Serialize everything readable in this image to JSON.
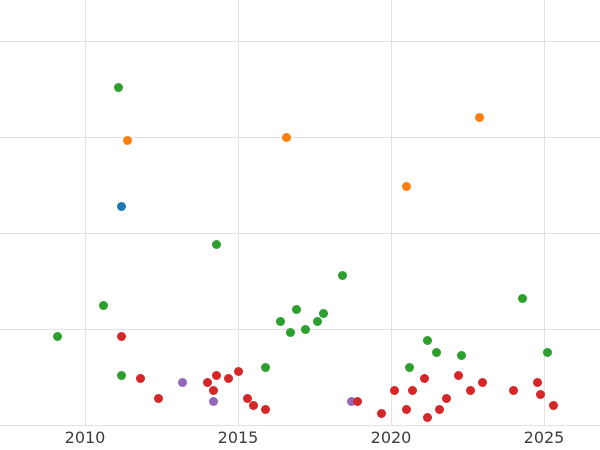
{
  "style": {
    "background": "#ffffff",
    "grid_color": "#e3e3e3",
    "tick_label_color": "#3d3d3d"
  },
  "chart_data": {
    "type": "scatter",
    "title": "",
    "xlabel": "",
    "ylabel": "",
    "grid": true,
    "legend": "none",
    "x_axis": {
      "tick_values": [
        2010,
        2015,
        2020,
        2025
      ],
      "tick_labels": [
        "2010",
        "2015",
        "2020",
        "2025"
      ],
      "range": [
        2007.2,
        2026.8
      ]
    },
    "y_axis": {
      "tick_labels": [],
      "gridline_values": [
        0,
        25,
        50,
        75,
        100
      ],
      "range": [
        0,
        100
      ]
    },
    "series": [
      {
        "name": "green",
        "color": "#2ca02c",
        "points": [
          [
            2009.1,
            23
          ],
          [
            2010.6,
            31
          ],
          [
            2011.1,
            88
          ],
          [
            2011.2,
            13
          ],
          [
            2014.3,
            47
          ],
          [
            2015.9,
            15
          ],
          [
            2016.4,
            27
          ],
          [
            2016.7,
            24
          ],
          [
            2016.9,
            30
          ],
          [
            2017.2,
            25
          ],
          [
            2017.6,
            27
          ],
          [
            2017.8,
            29
          ],
          [
            2018.4,
            39
          ],
          [
            2020.6,
            15
          ],
          [
            2021.2,
            22
          ],
          [
            2021.5,
            19
          ],
          [
            2022.3,
            18
          ],
          [
            2024.3,
            33
          ],
          [
            2025.1,
            19
          ]
        ]
      },
      {
        "name": "orange",
        "color": "#ff7f0e",
        "points": [
          [
            2011.4,
            74
          ],
          [
            2016.6,
            75
          ],
          [
            2020.5,
            62
          ],
          [
            2022.9,
            80
          ]
        ]
      },
      {
        "name": "blue",
        "color": "#1f77b4",
        "points": [
          [
            2011.2,
            57
          ]
        ]
      },
      {
        "name": "purple",
        "color": "#9467bd",
        "points": [
          [
            2013.2,
            11
          ],
          [
            2014.2,
            6
          ],
          [
            2018.7,
            6
          ]
        ]
      },
      {
        "name": "red",
        "color": "#d62728",
        "points": [
          [
            2011.2,
            23
          ],
          [
            2011.8,
            12
          ],
          [
            2012.4,
            7
          ],
          [
            2014.0,
            11
          ],
          [
            2014.2,
            9
          ],
          [
            2014.3,
            13
          ],
          [
            2014.7,
            12
          ],
          [
            2015.0,
            14
          ],
          [
            2015.3,
            7
          ],
          [
            2015.5,
            5
          ],
          [
            2015.9,
            4
          ],
          [
            2018.9,
            6
          ],
          [
            2019.7,
            3
          ],
          [
            2020.1,
            9
          ],
          [
            2020.5,
            4
          ],
          [
            2020.7,
            9
          ],
          [
            2021.1,
            12
          ],
          [
            2021.2,
            2
          ],
          [
            2021.6,
            4
          ],
          [
            2021.8,
            7
          ],
          [
            2022.2,
            13
          ],
          [
            2022.6,
            9
          ],
          [
            2023.0,
            11
          ],
          [
            2024.0,
            9
          ],
          [
            2024.8,
            11
          ],
          [
            2024.9,
            8
          ],
          [
            2025.3,
            5
          ]
        ]
      }
    ]
  }
}
